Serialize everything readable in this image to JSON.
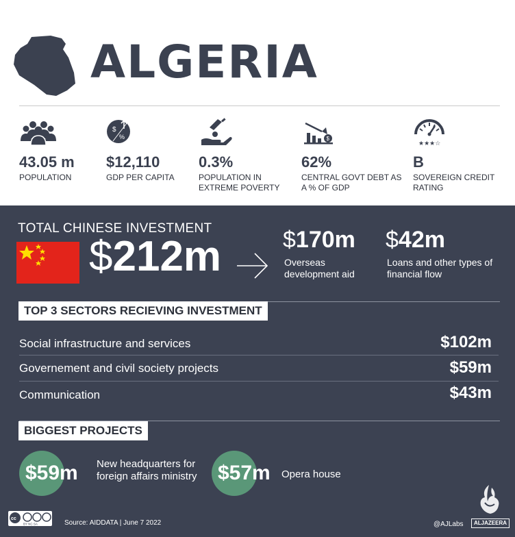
{
  "header": {
    "country": "ALGERIA"
  },
  "stats": [
    {
      "icon": "population-icon",
      "value": "43.05 m",
      "label": "POPULATION"
    },
    {
      "icon": "gdp-per-capita-icon",
      "value": "$12,110",
      "label": "GDP PER CAPITA"
    },
    {
      "icon": "extreme-poverty-icon",
      "value": "0.3%",
      "label": "POPULATION IN EXTREME POVERTY"
    },
    {
      "icon": "govt-debt-icon",
      "value": "62%",
      "label": "CENTRAL GOVT DEBT AS A % OF GDP"
    },
    {
      "icon": "credit-rating-icon",
      "value": "B",
      "label": "SOVEREIGN CREDIT RATING"
    }
  ],
  "investment": {
    "title": "TOTAL CHINESE INVESTMENT",
    "total_dollar": "$",
    "total_amount": "212m",
    "oda_dollar": "$",
    "oda_amount": "170m",
    "oda_label": "Overseas development aid",
    "loans_dollar": "$",
    "loans_amount": "42m",
    "loans_label": "Loans and other types of financial flow"
  },
  "sectors": {
    "heading": "TOP 3 SECTORS RECIEVING INVESTMENT",
    "items": [
      {
        "name": "Social infrastructure and services",
        "value": "$102m"
      },
      {
        "name": "Governement and civil society projects",
        "value": "$59m"
      },
      {
        "name": "Communication",
        "value": "$43m"
      }
    ]
  },
  "projects": {
    "heading": "BIGGEST PROJECTS",
    "items": [
      {
        "value": "$59m",
        "label": "New headquarters for foreign affairs ministry"
      },
      {
        "value": "$57m",
        "label": "Opera house"
      }
    ]
  },
  "footer": {
    "license": "BY NC SA",
    "source": "Source: AIDDATA  |  June 7 2022",
    "handle": "@AJLabs",
    "brand": "ALJAZEERA"
  },
  "colors": {
    "dark_bg": "#3c4252",
    "text_dark": "#3b4150",
    "flag_red": "#e3241b",
    "flag_star": "#ffde00",
    "project_green": "#5a9778"
  }
}
